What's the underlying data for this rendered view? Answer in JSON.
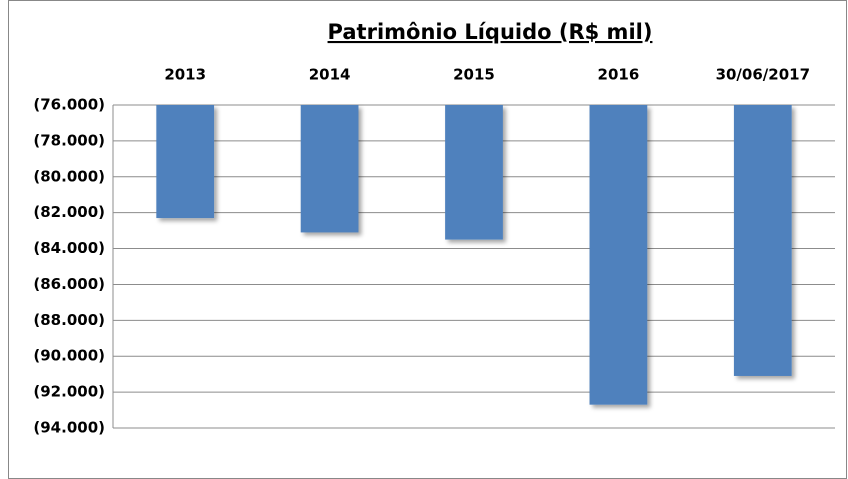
{
  "chart_data": {
    "type": "bar",
    "title": "Patrimônio Líquido (R$ mil)",
    "categories": [
      "2013",
      "2014",
      "2015",
      "2016",
      "30/06/2017"
    ],
    "values": [
      -82300,
      -83100,
      -83500,
      -92700,
      -91100
    ],
    "color": "#4f81bd",
    "ylim": [
      -94000,
      -76000
    ],
    "yticks": [
      {
        "value": -76000,
        "label": "(76.000)"
      },
      {
        "value": -78000,
        "label": "(78.000)"
      },
      {
        "value": -80000,
        "label": "(80.000)"
      },
      {
        "value": -82000,
        "label": "(82.000)"
      },
      {
        "value": -84000,
        "label": "(84.000)"
      },
      {
        "value": -86000,
        "label": "(86.000)"
      },
      {
        "value": -88000,
        "label": "(88.000)"
      },
      {
        "value": -90000,
        "label": "(90.000)"
      },
      {
        "value": -92000,
        "label": "(92.000)"
      },
      {
        "value": -94000,
        "label": "(94.000)"
      }
    ],
    "grid": true
  }
}
